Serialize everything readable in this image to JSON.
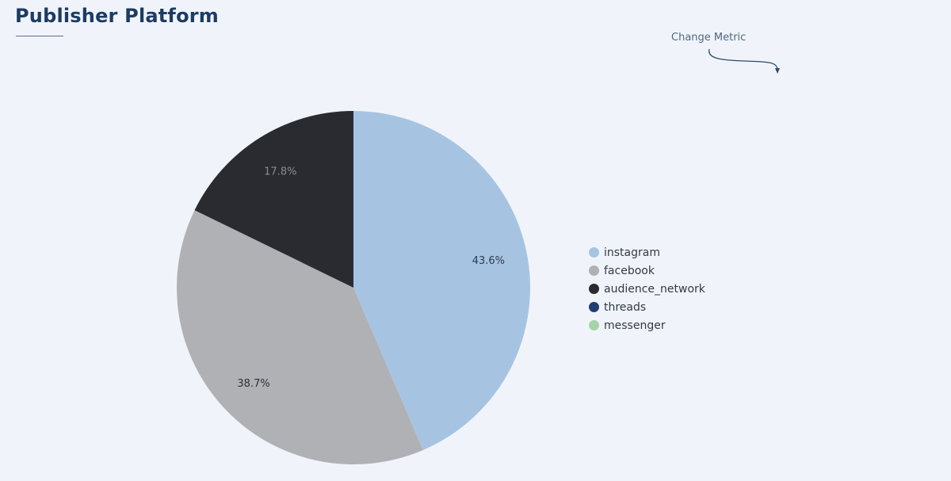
{
  "header": {
    "title": "Publisher Platform",
    "change_metric_label": "Change Metric"
  },
  "chart_data": {
    "type": "pie",
    "title": "Publisher Platform",
    "categories": [
      "instagram",
      "facebook",
      "audience_network",
      "threads",
      "messenger"
    ],
    "values": [
      43.6,
      38.7,
      17.8,
      0.0,
      0.0
    ],
    "labels": [
      "43.6%",
      "38.7%",
      "17.8%",
      "",
      ""
    ],
    "colors": [
      "#a6c4e2",
      "#b0b1b5",
      "#2a2b31",
      "#1f3f73",
      "#a5d4a7"
    ],
    "legend_position": "right"
  },
  "legend": {
    "items": [
      {
        "label": "instagram",
        "color": "#a6c4e2"
      },
      {
        "label": "facebook",
        "color": "#b0b1b5"
      },
      {
        "label": "audience_network",
        "color": "#2a2b31"
      },
      {
        "label": "threads",
        "color": "#1f3f73"
      },
      {
        "label": "messenger",
        "color": "#a5d4a7"
      }
    ]
  }
}
